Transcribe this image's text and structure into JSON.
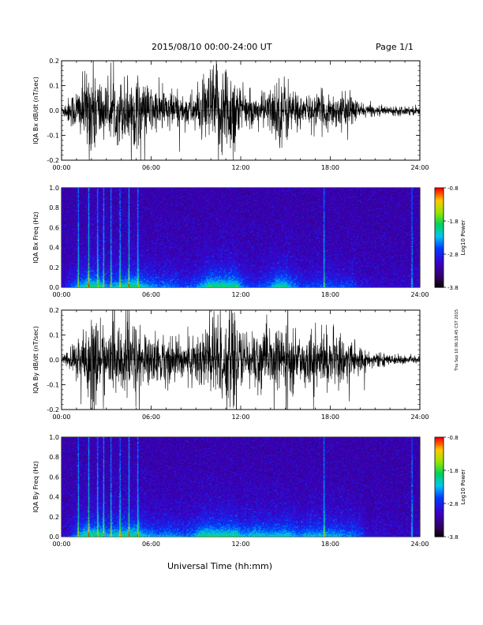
{
  "header": {
    "title": "2015/08/10   00:00-24:00 UT",
    "page": "Page 1/1"
  },
  "footer": {
    "xlabel": "Universal Time (hh:mm)",
    "stamp": "Thu Sep 10 06:18:45 CST 2015"
  },
  "chart_data": [
    {
      "type": "line",
      "ylabel": "IQA Bx dB/dt (nT/sec)",
      "ylim": [
        -0.2,
        0.2
      ],
      "yticks": [
        "0.2",
        "0.1",
        "0.0",
        "-0.1",
        "-0.2"
      ],
      "xlim": [
        0,
        24
      ],
      "xticks": [
        "00:00",
        "06:00",
        "12:00",
        "18:00",
        "24:00"
      ],
      "x_hours": [
        0,
        0.5,
        1,
        1.5,
        2,
        2.5,
        3,
        3.5,
        4,
        4.5,
        5,
        5.5,
        6,
        6.5,
        7,
        7.5,
        8,
        8.5,
        9,
        9.5,
        10,
        10.5,
        11,
        11.5,
        12,
        12.5,
        13,
        13.5,
        14,
        14.5,
        15,
        15.5,
        16,
        16.5,
        17,
        17.5,
        18,
        18.5,
        19,
        19.5,
        20,
        20.5,
        21,
        21.5,
        22,
        22.5,
        23,
        23.5,
        24
      ],
      "amplitude": [
        0.02,
        0.06,
        0.1,
        0.14,
        0.22,
        0.16,
        0.1,
        0.12,
        0.14,
        0.16,
        0.16,
        0.12,
        0.11,
        0.09,
        0.1,
        0.09,
        0.07,
        0.07,
        0.09,
        0.12,
        0.19,
        0.22,
        0.22,
        0.21,
        0.1,
        0.07,
        0.06,
        0.08,
        0.1,
        0.15,
        0.15,
        0.1,
        0.07,
        0.06,
        0.07,
        0.08,
        0.08,
        0.07,
        0.07,
        0.07,
        0.03,
        0.03,
        0.02,
        0.02,
        0.02,
        0.02,
        0.02,
        0.02,
        0.02
      ]
    },
    {
      "type": "heatmap",
      "ylabel": "IQA Bx Freq (Hz)",
      "ylim": [
        0,
        1.0
      ],
      "yticks": [
        "1.0",
        "0.8",
        "0.6",
        "0.4",
        "0.2",
        "0.0"
      ],
      "xlim": [
        0,
        24
      ],
      "xticks": [
        "00:00",
        "06:00",
        "12:00",
        "18:00",
        "24:00"
      ],
      "colorbar": {
        "label": "Log10 Power",
        "range": [
          -3.8,
          -0.8
        ],
        "ticks": [
          "-0.8",
          "-1.8",
          "-2.8",
          "-3.8"
        ]
      },
      "vertical_lines_hours": [
        1.1,
        1.8,
        2.4,
        2.8,
        3.3,
        3.9,
        4.5,
        5.1,
        17.6,
        23.5
      ]
    },
    {
      "type": "line",
      "ylabel": "IQA By dB/dt (nT/sec)",
      "ylim": [
        -0.2,
        0.2
      ],
      "yticks": [
        "0.2",
        "0.1",
        "0.0",
        "-0.1",
        "-0.2"
      ],
      "xlim": [
        0,
        24
      ],
      "xticks": [
        "00:00",
        "06:00",
        "12:00",
        "18:00",
        "24:00"
      ],
      "x_hours": [
        0,
        0.5,
        1,
        1.5,
        2,
        2.5,
        3,
        3.5,
        4,
        4.5,
        5,
        5.5,
        6,
        6.5,
        7,
        7.5,
        8,
        8.5,
        9,
        9.5,
        10,
        10.5,
        11,
        11.5,
        12,
        12.5,
        13,
        13.5,
        14,
        14.5,
        15,
        15.5,
        16,
        16.5,
        17,
        17.5,
        18,
        18.5,
        19,
        19.5,
        20,
        20.5,
        21,
        21.5,
        22,
        22.5,
        23,
        23.5,
        24
      ],
      "amplitude": [
        0.02,
        0.04,
        0.1,
        0.16,
        0.22,
        0.18,
        0.12,
        0.14,
        0.16,
        0.2,
        0.18,
        0.12,
        0.11,
        0.1,
        0.11,
        0.1,
        0.09,
        0.09,
        0.12,
        0.16,
        0.22,
        0.22,
        0.22,
        0.2,
        0.12,
        0.12,
        0.14,
        0.13,
        0.12,
        0.13,
        0.14,
        0.12,
        0.1,
        0.12,
        0.12,
        0.12,
        0.12,
        0.11,
        0.1,
        0.1,
        0.08,
        0.03,
        0.03,
        0.03,
        0.02,
        0.02,
        0.02,
        0.02,
        0.02
      ]
    },
    {
      "type": "heatmap",
      "ylabel": "IQA By Freq (Hz)",
      "ylim": [
        0,
        1.0
      ],
      "yticks": [
        "1.0",
        "0.8",
        "0.6",
        "0.4",
        "0.2",
        "0.0"
      ],
      "xlim": [
        0,
        24
      ],
      "xticks": [
        "00:00",
        "06:00",
        "12:00",
        "18:00",
        "24:00"
      ],
      "colorbar": {
        "label": "Log10 Power",
        "range": [
          -3.8,
          -0.8
        ],
        "ticks": [
          "-0.8",
          "-1.8",
          "-2.8",
          "-3.8"
        ]
      },
      "vertical_lines_hours": [
        1.1,
        1.8,
        2.4,
        2.8,
        3.3,
        3.9,
        4.5,
        5.1,
        17.6,
        23.5
      ]
    }
  ]
}
